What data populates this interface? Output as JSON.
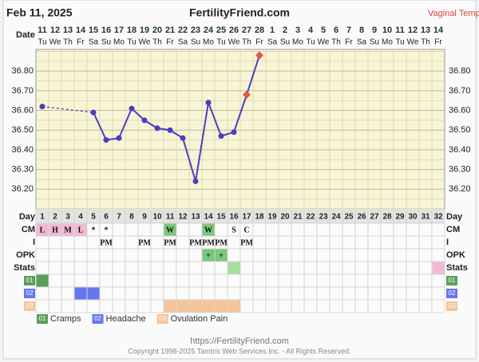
{
  "header": {
    "date": "Feb 11, 2025",
    "site": "FertilityFriend.com",
    "mode": "Vaginal Temp"
  },
  "chart_data": {
    "type": "line",
    "x_label": "Date",
    "categories": [
      "11",
      "12",
      "13",
      "14",
      "15",
      "16",
      "17",
      "18",
      "19",
      "20",
      "21",
      "22",
      "23",
      "24",
      "25",
      "26",
      "27",
      "28",
      "1",
      "2",
      "3",
      "4",
      "5",
      "6",
      "7",
      "8",
      "9",
      "10",
      "11",
      "12",
      "13",
      "14"
    ],
    "weekdays": [
      "Tu",
      "We",
      "Th",
      "Fr",
      "Sa",
      "Su",
      "Mo",
      "Tu",
      "We",
      "Th",
      "Fr",
      "Sa",
      "Su",
      "Mo",
      "Tu",
      "We",
      "Th",
      "Fr",
      "Sa",
      "Su",
      "Mo",
      "Tu",
      "We",
      "Th",
      "Fr",
      "Sa",
      "Su",
      "Mo",
      "Tu",
      "We",
      "Th",
      "Fr"
    ],
    "values": [
      36.62,
      null,
      null,
      null,
      36.59,
      36.45,
      36.46,
      36.61,
      36.55,
      36.51,
      36.5,
      36.46,
      36.24,
      36.64,
      36.47,
      36.49,
      36.68,
      36.88,
      null,
      null,
      null,
      null,
      null,
      null,
      null,
      null,
      null,
      null,
      null,
      null,
      null,
      null
    ],
    "point_markers": [
      "circle",
      null,
      null,
      null,
      "circle",
      "circle",
      "circle",
      "circle",
      "circle",
      "circle",
      "circle",
      "circle",
      "circle",
      "circle",
      "circle",
      "circle",
      "diamond",
      "diamond",
      null,
      null,
      null,
      null,
      null,
      null,
      null,
      null,
      null,
      null,
      null,
      null,
      null,
      null
    ],
    "color": "#4a3fc0",
    "flag_color": "#e0574c",
    "bridge_gaps": true,
    "ylim": [
      36.1,
      36.91
    ],
    "yticks": [
      {
        "value": 36.2,
        "label": "36.20"
      },
      {
        "value": 36.3,
        "label": "36.30"
      },
      {
        "value": 36.4,
        "label": "36.40"
      },
      {
        "value": 36.5,
        "label": "36.50"
      },
      {
        "value": 36.6,
        "label": "36.60"
      },
      {
        "value": 36.7,
        "label": "36.70"
      },
      {
        "value": 36.8,
        "label": "36.80"
      }
    ],
    "grid": true
  },
  "rows": {
    "day": {
      "label": "Day",
      "values": [
        1,
        2,
        3,
        4,
        5,
        6,
        7,
        8,
        9,
        10,
        11,
        12,
        13,
        14,
        15,
        16,
        17,
        18,
        19,
        20,
        21,
        22,
        23,
        24,
        25,
        26,
        27,
        28,
        29,
        30,
        31,
        32
      ]
    },
    "text_rows": [
      {
        "label": "CM",
        "cells": [
          {
            "text": "L",
            "bg": "#f4b9d2"
          },
          {
            "text": "H",
            "bg": "#f4b9d2"
          },
          {
            "text": "M",
            "bg": "#f4b9d2"
          },
          {
            "text": "L",
            "bg": "#f4b9d2"
          },
          {
            "text": "*"
          },
          {
            "text": "*"
          },
          null,
          null,
          null,
          null,
          {
            "text": "W",
            "bg": "#79c77b"
          },
          null,
          null,
          {
            "text": "W",
            "bg": "#79c77b"
          },
          null,
          {
            "text": "S"
          },
          {
            "text": "C"
          },
          null,
          null,
          null,
          null,
          null,
          null,
          null,
          null,
          null,
          null,
          null,
          null,
          null,
          null,
          null
        ]
      },
      {
        "label": "I",
        "cells": [
          null,
          null,
          null,
          null,
          null,
          {
            "text": "PM"
          },
          null,
          null,
          {
            "text": "PM"
          },
          null,
          {
            "text": "PM"
          },
          null,
          {
            "text": "PM"
          },
          {
            "text": "PM"
          },
          {
            "text": "PM"
          },
          null,
          {
            "text": "PM"
          },
          null,
          null,
          null,
          null,
          null,
          null,
          null,
          null,
          null,
          null,
          null,
          null,
          null,
          null,
          null
        ]
      },
      {
        "label": "OPK",
        "cells": [
          null,
          null,
          null,
          null,
          null,
          null,
          null,
          null,
          null,
          null,
          null,
          null,
          null,
          {
            "text": "+",
            "bg": "#79c77b"
          },
          {
            "text": "+",
            "bg": "#79c77b"
          },
          null,
          null,
          null,
          null,
          null,
          null,
          null,
          null,
          null,
          null,
          null,
          null,
          null,
          null,
          null,
          null,
          null
        ]
      },
      {
        "label": "Stats",
        "cells": [
          null,
          null,
          null,
          null,
          null,
          null,
          null,
          null,
          null,
          null,
          null,
          null,
          null,
          null,
          null,
          {
            "bg": "#a6e0a0"
          },
          null,
          null,
          null,
          null,
          null,
          null,
          null,
          null,
          null,
          null,
          null,
          null,
          null,
          null,
          null,
          {
            "bg": "#f4b9d2"
          }
        ]
      }
    ],
    "symptoms": [
      {
        "label": "01",
        "name": "Cramps",
        "color": "#5a9e5c",
        "days": [
          1
        ]
      },
      {
        "label": "02",
        "name": "Headache",
        "color": "#6677ee",
        "days": [
          4,
          5
        ]
      },
      {
        "label": "03",
        "name": "Ovulation Pain",
        "color": "#f6c49a",
        "days": [
          11,
          12,
          13,
          14,
          15,
          16
        ]
      }
    ]
  },
  "footer": {
    "url": "https://FertilityFriend.com",
    "copyright": "Copyright 1998-2025 Tamtris Web Services Inc. - All Rights Reserved."
  }
}
